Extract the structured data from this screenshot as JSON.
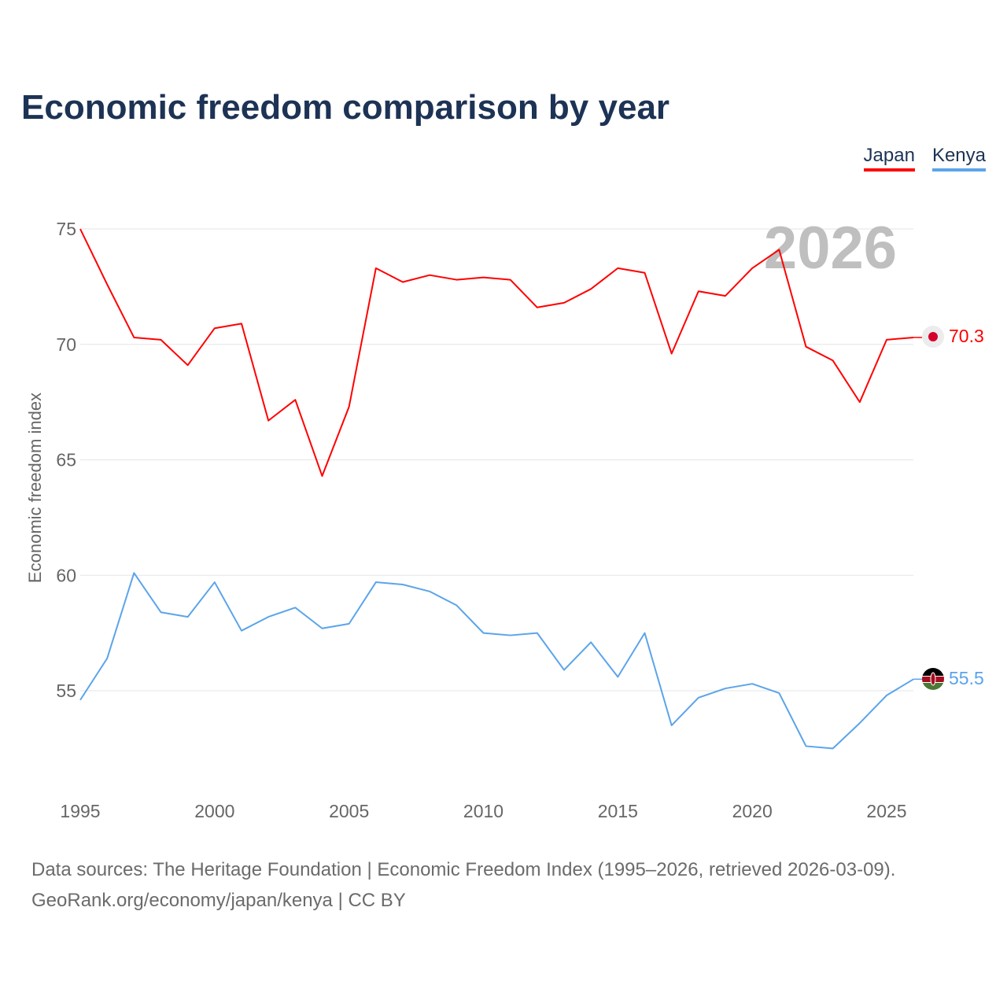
{
  "title": "Economic freedom comparison by year",
  "footer": {
    "line1": "Data sources: The Heritage Foundation | Economic Freedom Index (1995–2026, retrieved 2026-03-09).",
    "line2": "GeoRank.org/economy/japan/kenya | CC BY"
  },
  "chart_data": {
    "type": "line",
    "title": "Economic freedom comparison by year",
    "xlabel": "",
    "ylabel": "Economic freedom index",
    "year_watermark": "2026",
    "x": [
      1995,
      1996,
      1997,
      1998,
      1999,
      2000,
      2001,
      2002,
      2003,
      2004,
      2005,
      2006,
      2007,
      2008,
      2009,
      2010,
      2011,
      2012,
      2013,
      2014,
      2015,
      2016,
      2017,
      2018,
      2019,
      2020,
      2021,
      2022,
      2023,
      2024,
      2025,
      2026
    ],
    "xlim": [
      1995,
      2026
    ],
    "ylim": [
      50.6,
      75
    ],
    "xticks": [
      "1995",
      "2000",
      "2005",
      "2010",
      "2015",
      "2020",
      "2025"
    ],
    "yticks": [
      "55",
      "60",
      "65",
      "70",
      "75"
    ],
    "grid": true,
    "legend": "top-right",
    "series": [
      {
        "name": "Japan",
        "color": "#ff0000",
        "end_label": "70.3",
        "values": [
          75.0,
          72.6,
          70.3,
          70.2,
          69.1,
          70.7,
          70.9,
          66.7,
          67.6,
          64.3,
          67.3,
          73.3,
          72.7,
          73.0,
          72.8,
          72.9,
          72.8,
          71.6,
          71.8,
          72.4,
          73.3,
          73.1,
          69.6,
          72.3,
          72.1,
          73.3,
          74.1,
          69.9,
          69.3,
          67.5,
          70.2,
          70.3
        ]
      },
      {
        "name": "Kenya",
        "color": "#5ba4ea",
        "end_label": "55.5",
        "values": [
          54.6,
          56.4,
          60.1,
          58.4,
          58.2,
          59.7,
          57.6,
          58.2,
          58.6,
          57.7,
          57.9,
          59.7,
          59.6,
          59.3,
          58.7,
          57.5,
          57.4,
          57.5,
          55.9,
          57.1,
          55.6,
          57.5,
          53.5,
          54.7,
          55.1,
          55.3,
          54.9,
          52.6,
          52.5,
          53.6,
          54.8,
          55.5
        ]
      }
    ]
  }
}
